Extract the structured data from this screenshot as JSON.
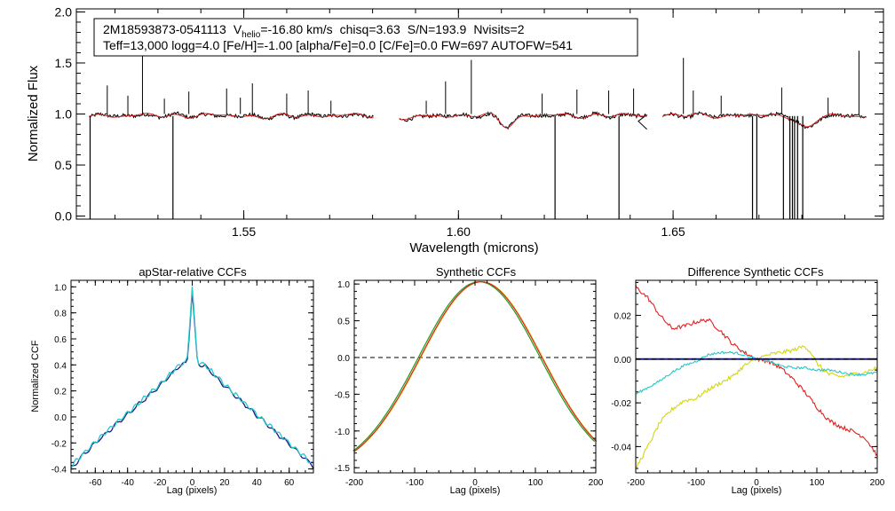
{
  "info_box": {
    "star_id": "2M18593873-0541113",
    "vhelio_prefix": "V",
    "vhelio_sub": "helio",
    "vhelio_value": "=-16.80 km/s",
    "chisq": "chisq=3.63",
    "snr": "S/N=193.9",
    "nvisits": "Nvisits=2",
    "params": "Teff=13,000 logg=4.0 [Fe/H]=-1.00 [alpha/Fe]=0.0 [C/Fe]=0.0 FW=697 AUTOFW=541"
  },
  "colors": {
    "observed": "#000000",
    "model": "#d62020",
    "ccf_a": "#1b1b8a",
    "ccf_b": "#26c8c8",
    "ccf_c": "#d5d515",
    "ccf_d": "#1f9a1f",
    "ccf_red": "#e02020"
  },
  "chart_data": [
    {
      "type": "line",
      "id": "spectrum",
      "title": "",
      "xlabel": "Wavelength (microns)",
      "ylabel": "Normalized Flux",
      "xlim": [
        1.511,
        1.699
      ],
      "ylim": [
        -0.03,
        2.03
      ],
      "xticks": [
        1.55,
        1.6,
        1.65
      ],
      "xtick_labels": [
        "1.55",
        "1.60",
        "1.65"
      ],
      "yticks": [
        0.0,
        0.5,
        1.0,
        1.5,
        2.0
      ],
      "ytick_labels": [
        "0.0",
        "0.5",
        "1.0",
        "1.5",
        "2.0"
      ],
      "segments": [
        [
          1.514,
          1.5802
        ],
        [
          1.5862,
          1.6439
        ],
        [
          1.6475,
          1.695
        ]
      ],
      "continuum": 0.985,
      "broad_features": [
        {
          "center": 1.6113,
          "depth": 0.1,
          "width": 0.0022
        },
        {
          "center": 1.6811,
          "depth": 0.13,
          "width": 0.0025
        },
        {
          "center": 1.5885,
          "depth": 0.04,
          "width": 0.0025
        },
        {
          "center": 1.556,
          "depth": 0.015,
          "width": 0.004
        }
      ],
      "emission_spikes": [
        [
          1.5182,
          1.28
        ],
        [
          1.523,
          1.18
        ],
        [
          1.5264,
          1.65
        ],
        [
          1.5315,
          1.15
        ],
        [
          1.5372,
          1.22
        ],
        [
          1.546,
          1.25
        ],
        [
          1.5492,
          1.16
        ],
        [
          1.552,
          1.3
        ],
        [
          1.56,
          1.2
        ],
        [
          1.565,
          1.23
        ],
        [
          1.5703,
          1.13
        ],
        [
          1.5925,
          1.13
        ],
        [
          1.597,
          1.32
        ],
        [
          1.603,
          1.53
        ],
        [
          1.6195,
          1.2
        ],
        [
          1.6276,
          1.24
        ],
        [
          1.635,
          1.23
        ],
        [
          1.6408,
          1.25
        ],
        [
          1.6524,
          1.55
        ],
        [
          1.6547,
          1.23
        ],
        [
          1.6612,
          1.18
        ],
        [
          1.6753,
          1.26
        ],
        [
          1.6861,
          1.16
        ],
        [
          1.6933,
          1.62
        ]
      ],
      "absorption_spikes": [
        [
          1.5142,
          0.0
        ],
        [
          1.5335,
          0.0
        ],
        [
          1.6225,
          0.0
        ],
        [
          1.6374,
          0.0
        ],
        [
          1.6685,
          0.0
        ],
        [
          1.6695,
          0.0
        ],
        [
          1.6757,
          0.0
        ],
        [
          1.6772,
          0.0
        ],
        [
          1.6778,
          0.0
        ],
        [
          1.6783,
          0.0
        ],
        [
          1.679,
          0.0
        ],
        [
          1.6802,
          0.0
        ]
      ]
    },
    {
      "type": "line",
      "id": "apstar-ccf",
      "title": "apStar-relative CCFs",
      "xlabel": "Lag (pixels)",
      "ylabel": "Normalized CCF",
      "xlim": [
        -75,
        75
      ],
      "ylim": [
        -0.43,
        1.05
      ],
      "xticks": [
        -60,
        -40,
        -20,
        0,
        20,
        40,
        60
      ],
      "xtick_labels": [
        "-60",
        "-40",
        "-20",
        "0",
        "20",
        "40",
        "60"
      ],
      "yticks": [
        -0.4,
        -0.2,
        0.0,
        0.2,
        0.4,
        0.6,
        0.8,
        1.0
      ],
      "ytick_labels": [
        "-0.4",
        "-0.2",
        "0.0",
        "0.2",
        "0.4",
        "0.6",
        "0.8",
        "1.0"
      ],
      "series": [
        {
          "name": "visit 1",
          "color_key": "ccf_a",
          "peak": 0.97,
          "offset": -0.01
        },
        {
          "name": "visit 2",
          "color_key": "ccf_b",
          "peak": 1.0,
          "offset": 0.0
        }
      ],
      "shape_points": [
        [
          -75,
          -0.38
        ],
        [
          -60,
          -0.19
        ],
        [
          -40,
          0.03
        ],
        [
          -20,
          0.25
        ],
        [
          -8,
          0.4
        ],
        [
          0,
          0.44
        ],
        [
          8,
          0.4
        ],
        [
          20,
          0.25
        ],
        [
          40,
          0.02
        ],
        [
          60,
          -0.2
        ],
        [
          75,
          -0.37
        ]
      ]
    },
    {
      "type": "line",
      "id": "synthetic-ccf",
      "title": "Synthetic CCFs",
      "xlabel": "Lag (pixels)",
      "ylabel": "",
      "xlim": [
        -200,
        200
      ],
      "ylim": [
        -1.57,
        1.05
      ],
      "xticks": [
        -200,
        -100,
        0,
        100,
        200
      ],
      "xtick_labels": [
        "-200",
        "-100",
        "0",
        "100",
        "200"
      ],
      "yticks": [
        -1.5,
        -1.0,
        -0.5,
        0.0,
        0.5,
        1.0
      ],
      "ytick_labels": [
        "-1.5",
        "-1.0",
        "-0.5",
        "0.0",
        "0.5",
        "1.0"
      ],
      "zero_line": 0.0,
      "series": [
        {
          "name": "synthetic green",
          "color_key": "ccf_d",
          "center": 9,
          "dx": -2
        },
        {
          "name": "synthetic yellow",
          "color_key": "ccf_c",
          "center": 9,
          "dx": 2
        },
        {
          "name": "synthetic red",
          "color_key": "ccf_red",
          "center": 10,
          "dx": 0
        }
      ]
    },
    {
      "type": "line",
      "id": "difference-ccf",
      "title": "Difference Synthetic CCFs",
      "xlabel": "Lag (pixels)",
      "ylabel": "",
      "xlim": [
        -200,
        200
      ],
      "ylim": [
        -0.052,
        0.036
      ],
      "xticks": [
        -200,
        -100,
        0,
        100,
        200
      ],
      "xtick_labels": [
        "-200",
        "-100",
        "0",
        "100",
        "200"
      ],
      "yticks": [
        -0.04,
        -0.02,
        0.0,
        0.02
      ],
      "ytick_labels": [
        "-0.04",
        "-0.02",
        "0.00",
        "0.02"
      ],
      "zero_line": 0.0,
      "series": [
        {
          "name": "red difference",
          "color_key": "ccf_red",
          "points": [
            [
              -200,
              0.033
            ],
            [
              -180,
              0.028
            ],
            [
              -160,
              0.02
            ],
            [
              -140,
              0.014
            ],
            [
              -120,
              0.015
            ],
            [
              -100,
              0.017
            ],
            [
              -80,
              0.018
            ],
            [
              -60,
              0.013
            ],
            [
              -40,
              0.007
            ],
            [
              -20,
              0.003
            ],
            [
              0,
              0.0
            ],
            [
              20,
              -0.001
            ],
            [
              40,
              -0.004
            ],
            [
              60,
              -0.009
            ],
            [
              80,
              -0.015
            ],
            [
              100,
              -0.022
            ],
            [
              120,
              -0.028
            ],
            [
              140,
              -0.031
            ],
            [
              160,
              -0.033
            ],
            [
              180,
              -0.036
            ],
            [
              200,
              -0.044
            ]
          ]
        },
        {
          "name": "yellow difference",
          "color_key": "ccf_c",
          "points": [
            [
              -200,
              -0.05
            ],
            [
              -180,
              -0.04
            ],
            [
              -160,
              -0.029
            ],
            [
              -140,
              -0.023
            ],
            [
              -120,
              -0.019
            ],
            [
              -100,
              -0.018
            ],
            [
              -80,
              -0.014
            ],
            [
              -60,
              -0.011
            ],
            [
              -40,
              -0.008
            ],
            [
              -20,
              -0.003
            ],
            [
              0,
              0.0
            ],
            [
              20,
              0.002
            ],
            [
              40,
              0.003
            ],
            [
              60,
              0.004
            ],
            [
              80,
              0.006
            ],
            [
              90,
              0.003
            ],
            [
              100,
              -0.002
            ],
            [
              120,
              -0.007
            ],
            [
              140,
              -0.008
            ],
            [
              160,
              -0.007
            ],
            [
              180,
              -0.006
            ],
            [
              200,
              -0.004
            ]
          ]
        },
        {
          "name": "cyan difference",
          "color_key": "ccf_b",
          "points": [
            [
              -200,
              -0.016
            ],
            [
              -180,
              -0.013
            ],
            [
              -160,
              -0.01
            ],
            [
              -140,
              -0.006
            ],
            [
              -120,
              -0.003
            ],
            [
              -100,
              -0.001
            ],
            [
              -80,
              0.002
            ],
            [
              -60,
              0.003
            ],
            [
              -40,
              0.003
            ],
            [
              -20,
              0.002
            ],
            [
              0,
              0.0
            ],
            [
              20,
              -0.001
            ],
            [
              40,
              -0.003
            ],
            [
              60,
              -0.004
            ],
            [
              80,
              -0.004
            ],
            [
              100,
              -0.005
            ],
            [
              120,
              -0.005
            ],
            [
              140,
              -0.006
            ],
            [
              160,
              -0.007
            ],
            [
              180,
              -0.007
            ],
            [
              200,
              -0.006
            ]
          ]
        },
        {
          "name": "blue difference",
          "color_key": "ccf_a",
          "points": [
            [
              -200,
              0.0
            ],
            [
              200,
              0.0
            ]
          ]
        }
      ]
    }
  ]
}
